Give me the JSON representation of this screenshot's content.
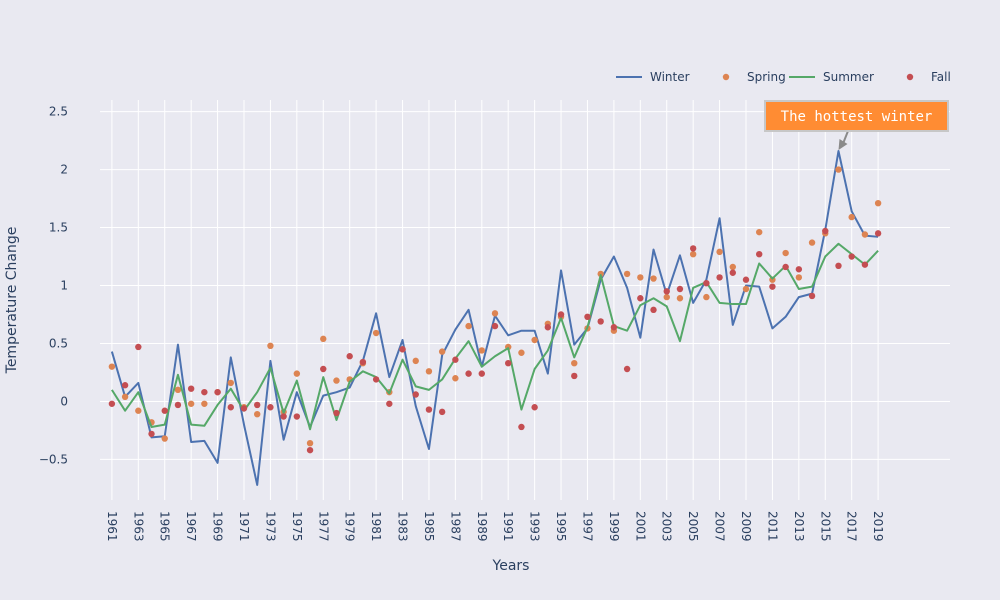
{
  "chart_data": {
    "type": "line",
    "title": "",
    "xlabel": "Years",
    "ylabel": "Temperature Change",
    "ylim": [
      -0.85,
      2.6
    ],
    "xlim": [
      1960.1,
      2019.9
    ],
    "y_ticks": [
      -0.5,
      0,
      0.5,
      1,
      1.5,
      2,
      2.5
    ],
    "y_tick_labels": [
      "−0.5",
      "0",
      "0.5",
      "1",
      "1.5",
      "2",
      "2.5"
    ],
    "x_ticks": [
      1961,
      1963,
      1965,
      1967,
      1969,
      1971,
      1973,
      1975,
      1977,
      1979,
      1981,
      1983,
      1985,
      1987,
      1989,
      1991,
      1993,
      1995,
      1997,
      1999,
      2001,
      2003,
      2005,
      2007,
      2009,
      2011,
      2013,
      2015,
      2017,
      2019
    ],
    "x_tick_labels": [
      "1961",
      "1963",
      "1965",
      "1967",
      "1969",
      "1971",
      "1973",
      "1975",
      "1977",
      "1979",
      "1981",
      "1983",
      "1985",
      "1987",
      "1989",
      "1991",
      "1993",
      "1995",
      "1997",
      "1999",
      "2001",
      "2003",
      "2005",
      "2007",
      "2009",
      "2011",
      "2013",
      "2015",
      "2017",
      "2019"
    ],
    "grid": true,
    "legend_position": "top-right",
    "x": [
      1961,
      1962,
      1963,
      1964,
      1965,
      1966,
      1967,
      1968,
      1969,
      1970,
      1971,
      1972,
      1973,
      1974,
      1975,
      1976,
      1977,
      1978,
      1979,
      1980,
      1981,
      1982,
      1983,
      1984,
      1985,
      1986,
      1987,
      1988,
      1989,
      1990,
      1991,
      1992,
      1993,
      1994,
      1995,
      1996,
      1997,
      1998,
      1999,
      2000,
      2001,
      2002,
      2003,
      2004,
      2005,
      2006,
      2007,
      2008,
      2009,
      2010,
      2011,
      2012,
      2013,
      2014,
      2015,
      2016,
      2017,
      2018,
      2019
    ],
    "series": [
      {
        "name": "Winter",
        "mode": "lines",
        "color": "#4c72b0",
        "values": [
          0.43,
          0.04,
          0.16,
          -0.31,
          -0.3,
          0.49,
          -0.35,
          -0.34,
          -0.53,
          0.38,
          -0.2,
          -0.72,
          0.35,
          -0.33,
          0.08,
          -0.22,
          0.05,
          0.08,
          0.12,
          0.35,
          0.76,
          0.21,
          0.53,
          -0.04,
          -0.41,
          0.4,
          0.62,
          0.79,
          0.3,
          0.74,
          0.57,
          0.61,
          0.61,
          0.24,
          1.13,
          0.49,
          0.63,
          1.05,
          1.25,
          0.98,
          0.55,
          1.31,
          0.92,
          1.26,
          0.85,
          1.05,
          1.58,
          0.66,
          1.0,
          0.99,
          0.63,
          0.73,
          0.9,
          0.93,
          1.48,
          2.16,
          1.64,
          1.43,
          1.42
        ]
      },
      {
        "name": "Spring",
        "mode": "markers",
        "color": "#dd8452",
        "values": [
          0.3,
          0.04,
          -0.08,
          -0.18,
          -0.32,
          0.1,
          -0.02,
          -0.02,
          0.08,
          0.16,
          -0.05,
          -0.11,
          0.48,
          -0.09,
          0.24,
          -0.36,
          0.54,
          0.18,
          0.19,
          0.33,
          0.59,
          0.08,
          0.45,
          0.35,
          0.26,
          0.43,
          0.2,
          0.65,
          0.44,
          0.76,
          0.47,
          0.42,
          0.53,
          0.67,
          0.73,
          0.33,
          0.63,
          1.1,
          0.61,
          1.1,
          1.07,
          1.06,
          0.9,
          0.89,
          1.27,
          0.9,
          1.29,
          1.16,
          0.97,
          1.46,
          1.05,
          1.28,
          1.07,
          1.37,
          1.45,
          2.0,
          1.59,
          1.44,
          1.71
        ]
      },
      {
        "name": "Summer",
        "mode": "lines",
        "color": "#55a868",
        "values": [
          0.1,
          -0.08,
          0.08,
          -0.22,
          -0.2,
          0.23,
          -0.2,
          -0.21,
          -0.03,
          0.11,
          -0.08,
          0.08,
          0.29,
          -0.1,
          0.18,
          -0.24,
          0.21,
          -0.16,
          0.17,
          0.26,
          0.21,
          0.07,
          0.36,
          0.13,
          0.1,
          0.19,
          0.37,
          0.52,
          0.3,
          0.39,
          0.46,
          -0.07,
          0.28,
          0.44,
          0.72,
          0.38,
          0.64,
          1.09,
          0.65,
          0.61,
          0.83,
          0.89,
          0.82,
          0.52,
          0.98,
          1.03,
          0.85,
          0.84,
          0.84,
          1.19,
          1.06,
          1.17,
          0.97,
          0.99,
          1.25,
          1.36,
          1.27,
          1.18,
          1.3
        ]
      },
      {
        "name": "Fall",
        "mode": "markers",
        "color": "#c44e52",
        "values": [
          -0.02,
          0.14,
          0.47,
          -0.28,
          -0.08,
          -0.03,
          0.11,
          0.08,
          0.08,
          -0.05,
          -0.06,
          -0.03,
          -0.05,
          -0.13,
          -0.13,
          -0.42,
          0.28,
          -0.1,
          0.39,
          0.34,
          0.19,
          -0.02,
          0.45,
          0.06,
          -0.07,
          -0.09,
          0.36,
          0.24,
          0.24,
          0.65,
          0.33,
          -0.22,
          -0.05,
          0.64,
          0.75,
          0.22,
          0.73,
          0.69,
          0.64,
          0.28,
          0.89,
          0.79,
          0.95,
          0.97,
          1.32,
          1.02,
          1.07,
          1.11,
          1.05,
          1.27,
          0.99,
          1.16,
          1.14,
          0.91,
          1.47,
          1.17,
          1.25,
          1.18,
          1.45
        ]
      }
    ],
    "annotation": {
      "text": "The hottest winter",
      "x": 2016,
      "y": 2.16,
      "bg_color": "#ff8c33",
      "border_color": "#c7c7c7"
    }
  },
  "colors": {
    "background": "#e9e9f1",
    "grid": "#ffffff",
    "text": "#2a3f5f"
  }
}
